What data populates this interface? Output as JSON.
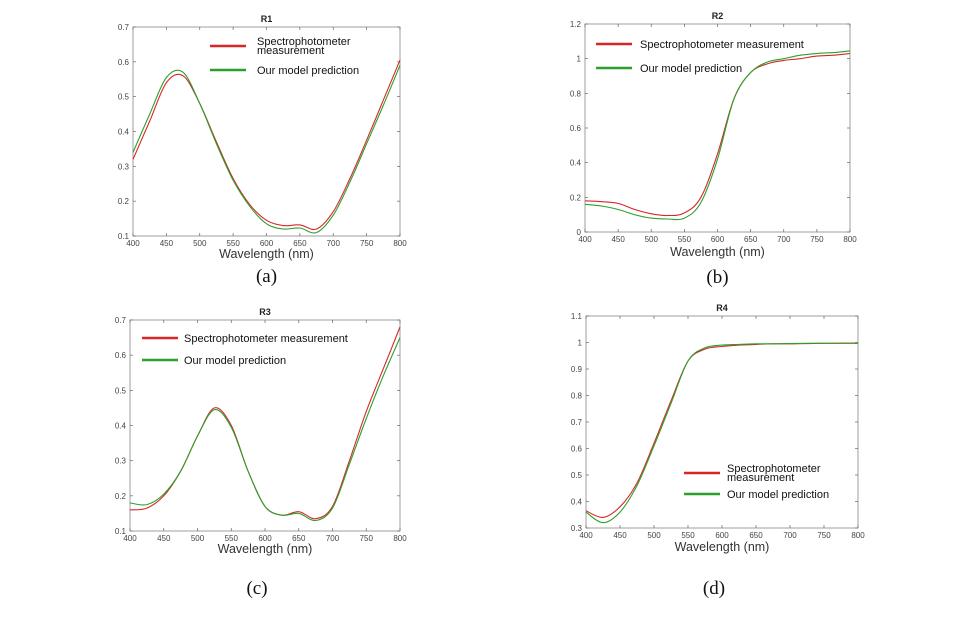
{
  "chart_data": [
    {
      "type": "line",
      "panel_label": "(a)",
      "title": "R1",
      "xlabel": "Wavelength (nm)",
      "ylabel": "",
      "xlim": [
        400,
        800
      ],
      "ylim": [
        0.1,
        0.7
      ],
      "xticks": [
        "400",
        "450",
        "500",
        "550",
        "600",
        "650",
        "700",
        "750",
        "800"
      ],
      "yticks": [
        "0.1",
        "0.2",
        "0.3",
        "0.4",
        "0.5",
        "0.6",
        "0.7"
      ],
      "x": [
        400,
        425,
        450,
        475,
        500,
        525,
        550,
        575,
        600,
        625,
        650,
        675,
        700,
        725,
        750,
        775,
        800
      ],
      "legend_placement": "top-right",
      "series": [
        {
          "name": "Spectrophotometer measurement",
          "legend_lines": [
            "Spectrophotometer",
            "measurement"
          ],
          "color": "#d62728",
          "values": [
            0.32,
            0.43,
            0.54,
            0.56,
            0.48,
            0.37,
            0.265,
            0.19,
            0.145,
            0.13,
            0.132,
            0.12,
            0.17,
            0.265,
            0.375,
            0.49,
            0.605
          ]
        },
        {
          "name": "Our model prediction",
          "legend_lines": [
            "Our model prediction"
          ],
          "color": "#2ca02c",
          "values": [
            0.34,
            0.45,
            0.555,
            0.57,
            0.48,
            0.365,
            0.26,
            0.185,
            0.135,
            0.12,
            0.123,
            0.11,
            0.16,
            0.255,
            0.365,
            0.475,
            0.59
          ]
        }
      ]
    },
    {
      "type": "line",
      "panel_label": "(b)",
      "title": "R2",
      "xlabel": "Wavelength (nm)",
      "ylabel": "",
      "xlim": [
        400,
        800
      ],
      "ylim": [
        0,
        1.2
      ],
      "xticks": [
        "400",
        "450",
        "500",
        "550",
        "600",
        "650",
        "700",
        "750",
        "800"
      ],
      "yticks": [
        "0",
        "0.2",
        "0.4",
        "0.6",
        "0.8",
        "1",
        "1.2"
      ],
      "x": [
        400,
        425,
        450,
        475,
        500,
        525,
        550,
        575,
        600,
        625,
        650,
        675,
        700,
        725,
        750,
        775,
        800
      ],
      "legend_placement": "top-left",
      "series": [
        {
          "name": "Spectrophotometer measurement",
          "legend_lines": [
            "Spectrophotometer measurement"
          ],
          "color": "#d62728",
          "values": [
            0.18,
            0.175,
            0.165,
            0.13,
            0.105,
            0.095,
            0.11,
            0.2,
            0.45,
            0.77,
            0.92,
            0.97,
            0.99,
            1.0,
            1.015,
            1.02,
            1.03
          ]
        },
        {
          "name": "Our model prediction",
          "legend_lines": [
            "Our model prediction"
          ],
          "color": "#2ca02c",
          "values": [
            0.16,
            0.15,
            0.13,
            0.1,
            0.08,
            0.075,
            0.08,
            0.17,
            0.42,
            0.77,
            0.92,
            0.98,
            1.0,
            1.02,
            1.03,
            1.035,
            1.045
          ]
        }
      ]
    },
    {
      "type": "line",
      "panel_label": "(c)",
      "title": "R3",
      "xlabel": "Wavelength (nm)",
      "ylabel": "",
      "xlim": [
        400,
        800
      ],
      "ylim": [
        0.1,
        0.7
      ],
      "xticks": [
        "400",
        "450",
        "500",
        "550",
        "600",
        "650",
        "700",
        "750",
        "800"
      ],
      "yticks": [
        "0.1",
        "0.2",
        "0.3",
        "0.4",
        "0.5",
        "0.6",
        "0.7"
      ],
      "x": [
        400,
        425,
        450,
        475,
        500,
        525,
        550,
        575,
        600,
        625,
        650,
        675,
        700,
        725,
        750,
        775,
        800
      ],
      "legend_placement": "top-left",
      "series": [
        {
          "name": "Spectrophotometer measurement",
          "legend_lines": [
            "Spectrophotometer measurement"
          ],
          "color": "#d62728",
          "values": [
            0.16,
            0.165,
            0.2,
            0.27,
            0.37,
            0.45,
            0.4,
            0.27,
            0.17,
            0.145,
            0.155,
            0.135,
            0.17,
            0.3,
            0.44,
            0.56,
            0.68
          ]
        },
        {
          "name": "Our model prediction",
          "legend_lines": [
            "Our model prediction"
          ],
          "color": "#2ca02c",
          "values": [
            0.18,
            0.175,
            0.205,
            0.27,
            0.37,
            0.445,
            0.395,
            0.27,
            0.17,
            0.145,
            0.15,
            0.13,
            0.165,
            0.29,
            0.42,
            0.54,
            0.65
          ]
        }
      ]
    },
    {
      "type": "line",
      "panel_label": "(d)",
      "title": "R4",
      "xlabel": "Wavelength (nm)",
      "ylabel": "",
      "xlim": [
        400,
        800
      ],
      "ylim": [
        0.3,
        1.1
      ],
      "xticks": [
        "400",
        "450",
        "500",
        "550",
        "600",
        "650",
        "700",
        "750",
        "800"
      ],
      "yticks": [
        "0.3",
        "0.4",
        "0.5",
        "0.6",
        "0.7",
        "0.8",
        "0.9",
        "1",
        "1.1"
      ],
      "x": [
        400,
        425,
        450,
        475,
        500,
        525,
        550,
        575,
        600,
        625,
        650,
        675,
        700,
        725,
        750,
        775,
        800
      ],
      "legend_placement": "bottom-right",
      "series": [
        {
          "name": "Spectrophotometer measurement",
          "legend_lines": [
            "Spectrophotometer",
            "measurement"
          ],
          "color": "#d62728",
          "values": [
            0.365,
            0.34,
            0.38,
            0.47,
            0.62,
            0.78,
            0.93,
            0.975,
            0.985,
            0.99,
            0.993,
            0.995,
            0.995,
            0.996,
            0.997,
            0.997,
            0.997
          ]
        },
        {
          "name": "Our model prediction",
          "legend_lines": [
            "Our model prediction"
          ],
          "color": "#2ca02c",
          "values": [
            0.36,
            0.32,
            0.36,
            0.46,
            0.61,
            0.77,
            0.93,
            0.98,
            0.99,
            0.993,
            0.995,
            0.995,
            0.996,
            0.997,
            0.997,
            0.998,
            0.998
          ]
        }
      ]
    }
  ]
}
